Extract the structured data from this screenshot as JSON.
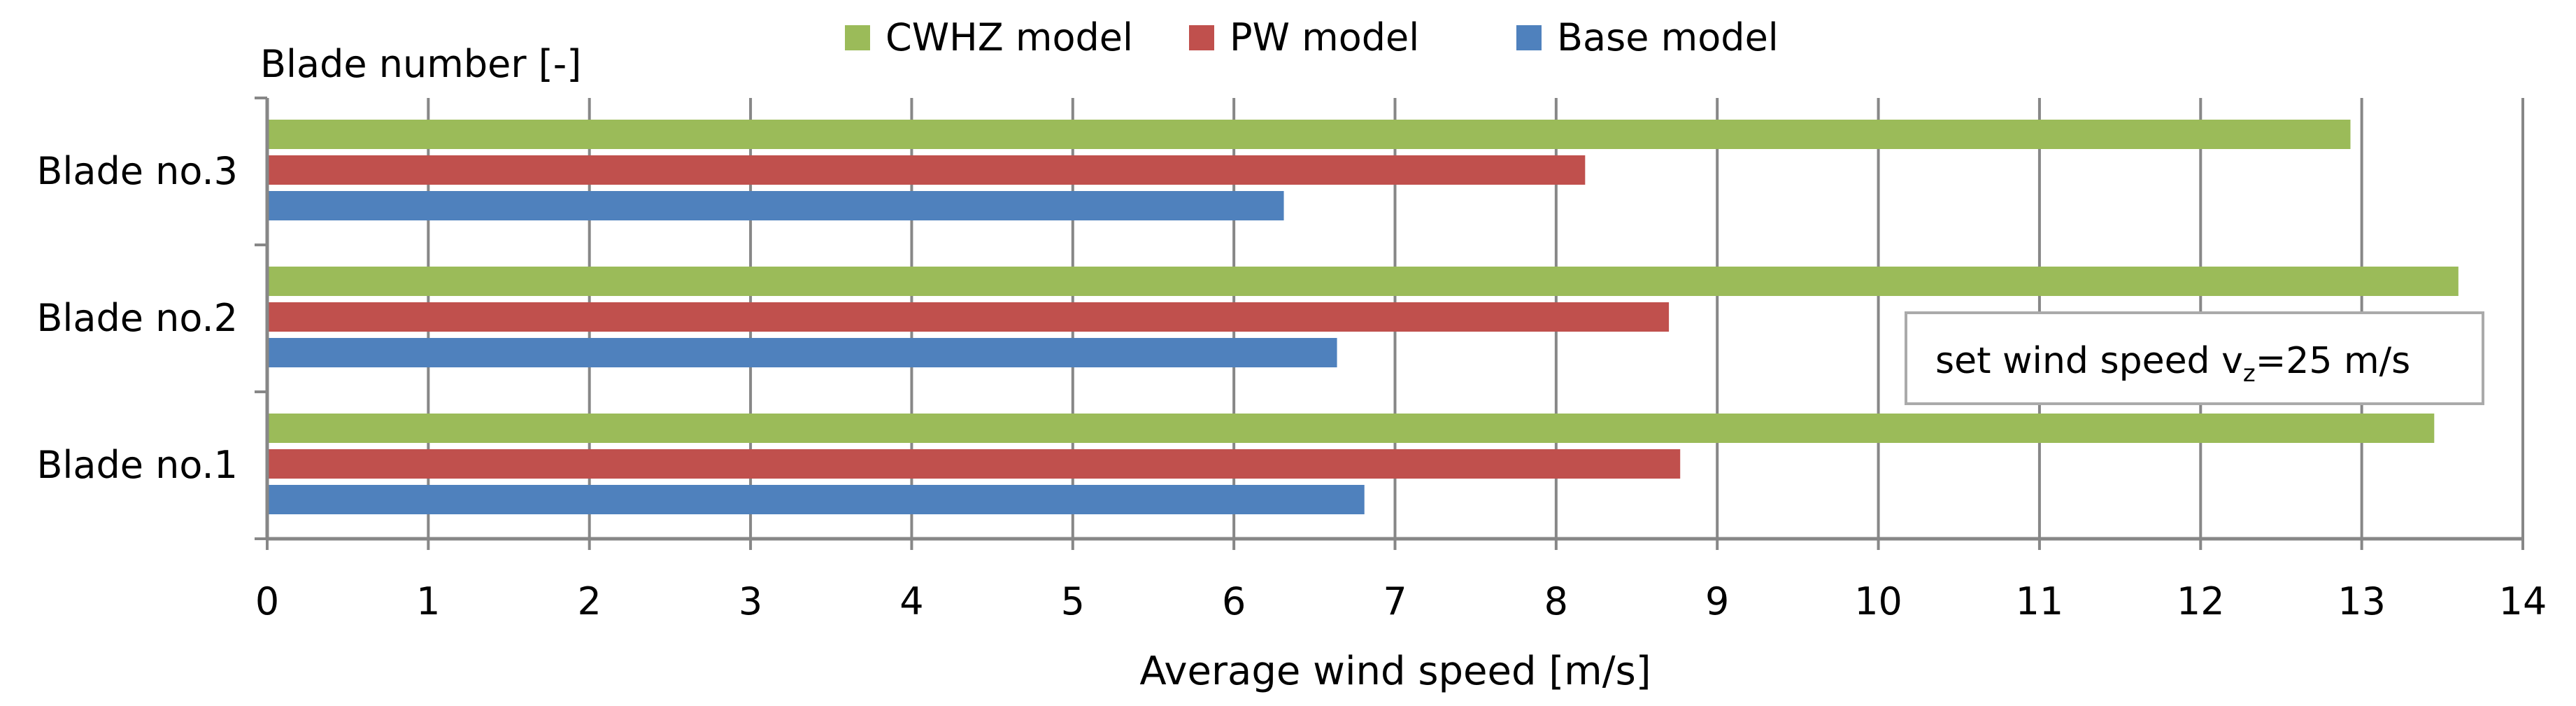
{
  "chart_data": {
    "type": "bar",
    "orientation": "horizontal",
    "categories": [
      "Blade no.1",
      "Blade no.2",
      "Blade no.3"
    ],
    "series": [
      {
        "name": "CWHZ model",
        "values": [
          13.45,
          13.6,
          12.93
        ],
        "color": "#9bbb59"
      },
      {
        "name": "PW model",
        "values": [
          8.77,
          8.7,
          8.18
        ],
        "color": "#c0504d"
      },
      {
        "name": "Base model",
        "values": [
          6.81,
          6.64,
          6.31
        ],
        "color": "#4f81bd"
      }
    ],
    "xlabel": "Average wind speed [m/s]",
    "ylabel": "Blade number  [-]",
    "xlim": [
      0,
      14
    ],
    "xticks": [
      0,
      1,
      2,
      3,
      4,
      5,
      6,
      7,
      8,
      9,
      10,
      11,
      12,
      13,
      14
    ],
    "grid": "vertical",
    "legend_position": "top",
    "annotation": {
      "prefix": "set wind  speed v",
      "subscript": "z",
      "suffix": "=25  m/s"
    }
  }
}
